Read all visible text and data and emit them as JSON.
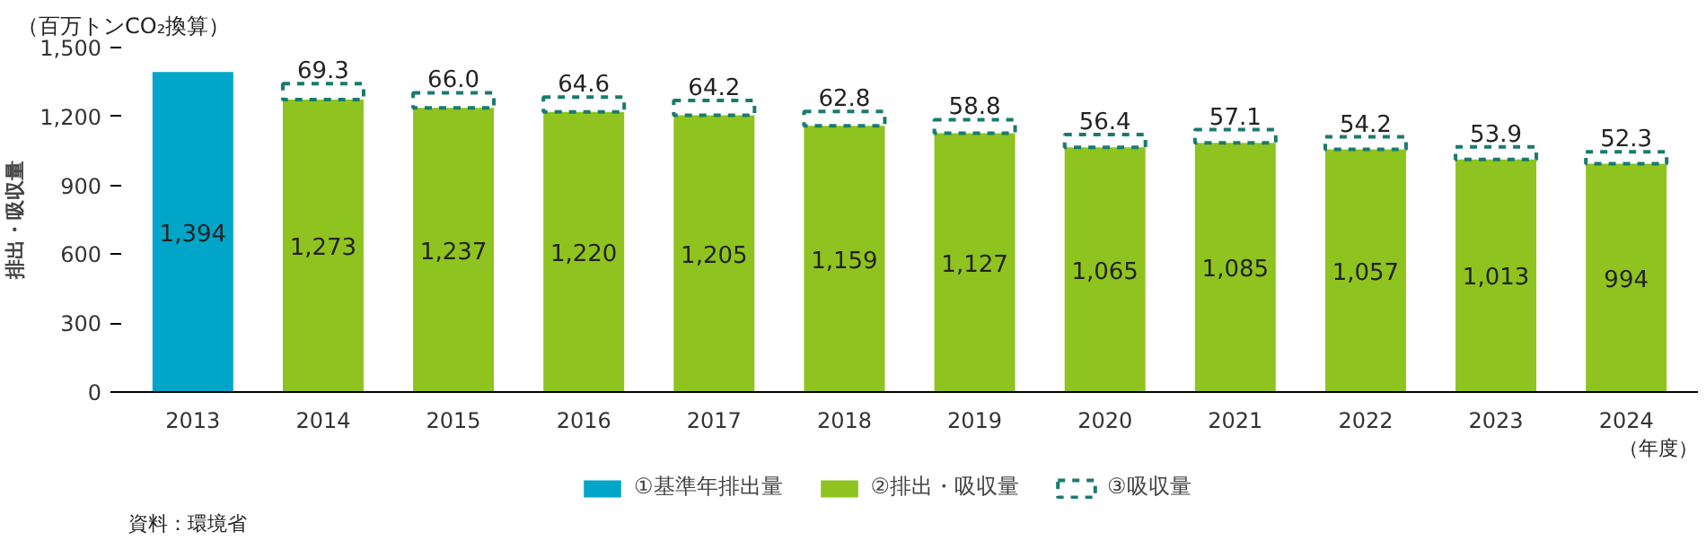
{
  "chart_data": {
    "type": "bar",
    "stacked": true,
    "annotations": [
      "（百万トンCO₂換算）",
      "資料：環境省"
    ],
    "ylabel": "排出・吸収量",
    "xlabel": "（年度）",
    "categories": [
      "2013",
      "2014",
      "2015",
      "2016",
      "2017",
      "2018",
      "2019",
      "2020",
      "2021",
      "2022",
      "2023",
      "2024"
    ],
    "ylim": [
      0,
      1500
    ],
    "yticks": [
      0,
      300,
      600,
      900,
      {
        "value": 1200,
        "label": "1,200"
      },
      {
        "value": 1500,
        "label": "1,500"
      }
    ],
    "grid": false,
    "legend": "bottom",
    "series": [
      {
        "name": "①基準年排出量",
        "color": "#00a5c8",
        "values": [
          1394,
          null,
          null,
          null,
          null,
          null,
          null,
          null,
          null,
          null,
          null,
          null
        ],
        "value_labels": [
          "1,394",
          null,
          null,
          null,
          null,
          null,
          null,
          null,
          null,
          null,
          null,
          null
        ]
      },
      {
        "name": "②排出・吸収量",
        "color": "#8fc31f",
        "values": [
          null,
          1273,
          1237,
          1220,
          1205,
          1159,
          1127,
          1065,
          1085,
          1057,
          1013,
          994
        ],
        "value_labels": [
          null,
          "1,273",
          "1,237",
          "1,220",
          "1,205",
          "1,159",
          "1,127",
          "1,065",
          "1,085",
          "1,057",
          "1,013",
          "994"
        ]
      },
      {
        "name": "③吸収量",
        "color": "#1a7a6e",
        "line_style": "dashed",
        "values": [
          null,
          69.3,
          66.0,
          64.6,
          64.2,
          62.8,
          58.8,
          56.4,
          57.1,
          54.2,
          53.9,
          52.3
        ],
        "value_labels": [
          null,
          "69.3",
          "66.0",
          "64.6",
          "64.2",
          "62.8",
          "58.8",
          "56.4",
          "57.1",
          "54.2",
          "53.9",
          "52.3"
        ]
      }
    ]
  }
}
